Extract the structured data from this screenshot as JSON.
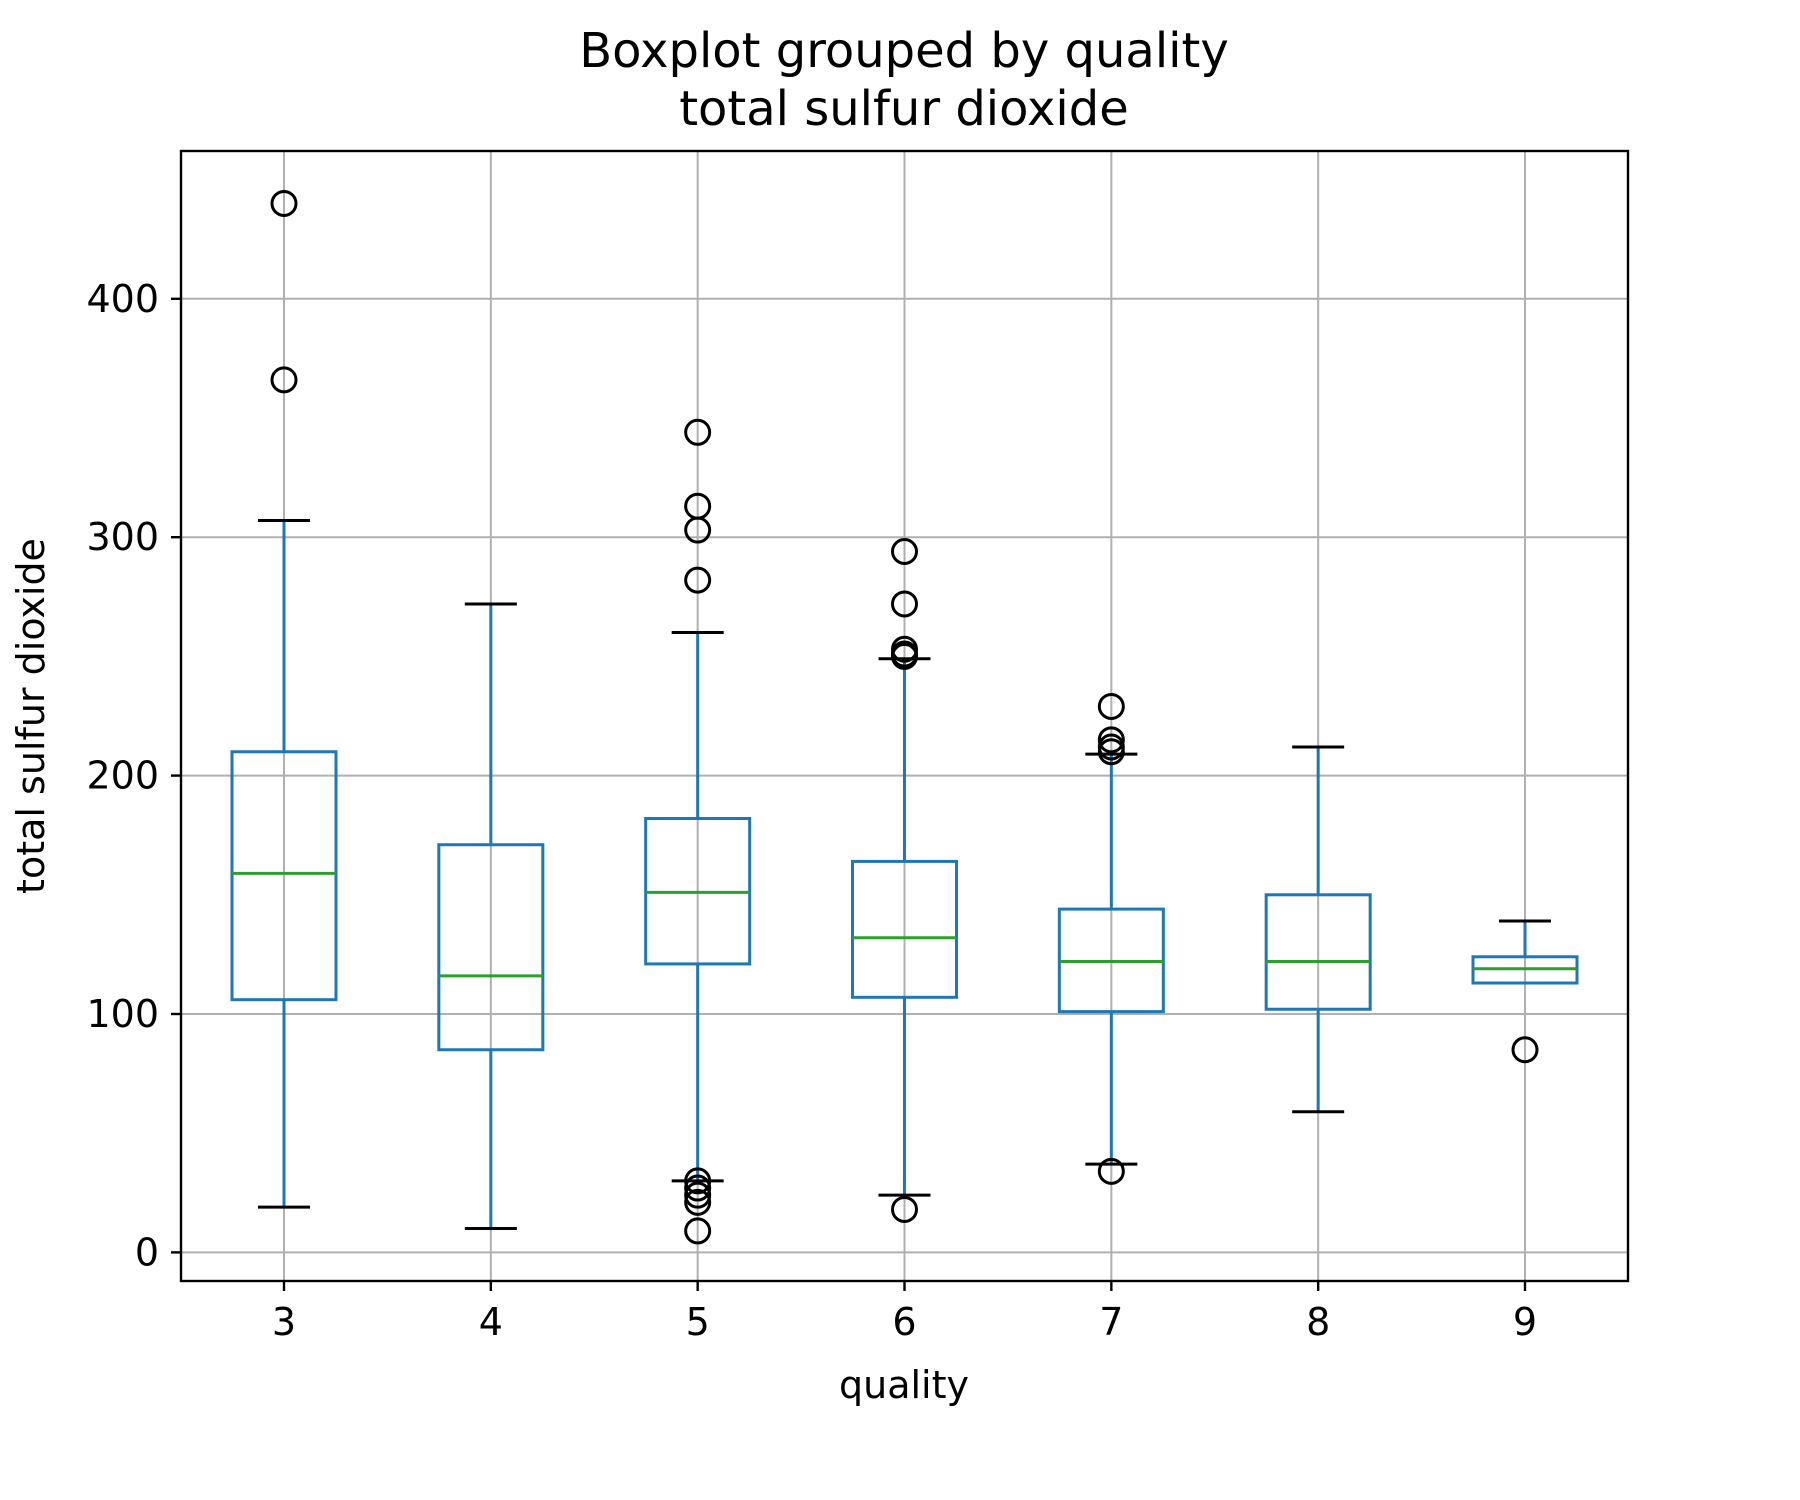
{
  "title_line1": "Boxplot grouped by quality",
  "title_line2": "total sulfur dioxide",
  "chart_data": {
    "type": "box",
    "title": "Boxplot grouped by quality",
    "subtitle": "total sulfur dioxide",
    "xlabel": "quality",
    "ylabel": "total sulfur dioxide",
    "ylim": [
      -12,
      462
    ],
    "yticks": [
      0,
      100,
      200,
      300,
      400
    ],
    "grid": true,
    "colors": {
      "box": "#1f77b4",
      "median": "#2ca02c",
      "whisker": "#1f77b4",
      "cap": "#000000",
      "flier": "#000000",
      "grid": "#b0b0b0"
    },
    "categories": [
      "3",
      "4",
      "5",
      "6",
      "7",
      "8",
      "9"
    ],
    "boxes": [
      {
        "category": "3",
        "whislo": 19,
        "q1": 106,
        "median": 159,
        "q3": 210,
        "whishi": 307,
        "fliers": [
          366,
          440
        ]
      },
      {
        "category": "4",
        "whislo": 10,
        "q1": 85,
        "median": 116,
        "q3": 171,
        "whishi": 272,
        "fliers": []
      },
      {
        "category": "5",
        "whislo": 30,
        "q1": 121,
        "median": 151,
        "q3": 182,
        "whishi": 260,
        "fliers": [
          9,
          21,
          24,
          27,
          30,
          282,
          303,
          313,
          344
        ]
      },
      {
        "category": "6",
        "whislo": 24,
        "q1": 107,
        "median": 132,
        "q3": 164,
        "whishi": 249,
        "fliers": [
          18,
          250,
          251,
          253,
          272,
          294
        ]
      },
      {
        "category": "7",
        "whislo": 37,
        "q1": 101,
        "median": 122,
        "q3": 144,
        "whishi": 209,
        "fliers": [
          34,
          210,
          212,
          215,
          229
        ]
      },
      {
        "category": "8",
        "whislo": 59,
        "q1": 102,
        "median": 122,
        "q3": 150,
        "whishi": 212,
        "fliers": []
      },
      {
        "category": "9",
        "whislo": 113,
        "q1": 113,
        "median": 119,
        "q3": 124,
        "whishi": 139,
        "fliers": [
          85
        ]
      }
    ]
  }
}
